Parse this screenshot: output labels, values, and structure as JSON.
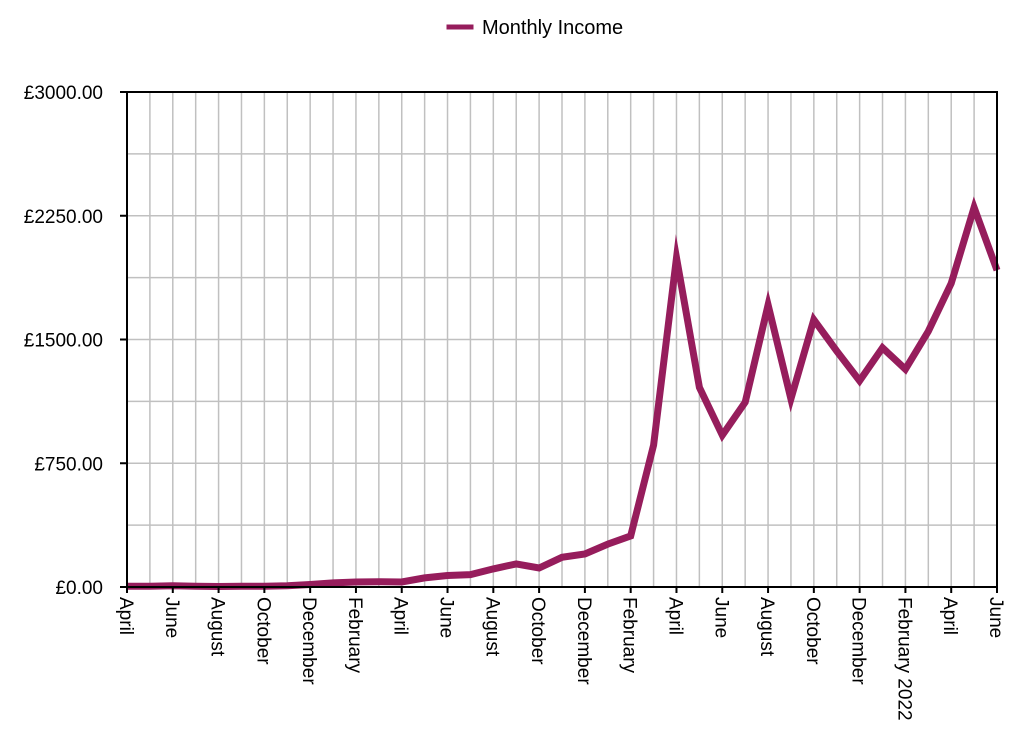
{
  "chart_data": {
    "type": "line",
    "title": "",
    "xlabel": "",
    "ylabel": "",
    "legend": {
      "position": "top-center",
      "entries": [
        {
          "label": "Monthly Income",
          "color": "#961D5C"
        }
      ]
    },
    "grid": true,
    "x_tick_labels": [
      {
        "index": 0,
        "label": "April"
      },
      {
        "index": 2,
        "label": "June"
      },
      {
        "index": 4,
        "label": "August"
      },
      {
        "index": 6,
        "label": "October"
      },
      {
        "index": 8,
        "label": "December"
      },
      {
        "index": 10,
        "label": "February"
      },
      {
        "index": 12,
        "label": "April"
      },
      {
        "index": 14,
        "label": "June"
      },
      {
        "index": 16,
        "label": "August"
      },
      {
        "index": 18,
        "label": "October"
      },
      {
        "index": 20,
        "label": "December"
      },
      {
        "index": 22,
        "label": "February"
      },
      {
        "index": 24,
        "label": "April"
      },
      {
        "index": 26,
        "label": "June"
      },
      {
        "index": 28,
        "label": "August"
      },
      {
        "index": 30,
        "label": "October"
      },
      {
        "index": 32,
        "label": "December"
      },
      {
        "index": 34,
        "label": "February 2022"
      },
      {
        "index": 36,
        "label": "April"
      },
      {
        "index": 38,
        "label": "June"
      }
    ],
    "y_tick_labels": [
      "£0.00",
      "£750.00",
      "£1500.00",
      "£2250.00",
      "£3000.00"
    ],
    "ylim": [
      0,
      3000
    ],
    "y_ticks": [
      0,
      750,
      1500,
      2250,
      3000
    ],
    "series": [
      {
        "name": "Monthly Income",
        "color": "#961D5C",
        "values": [
          5,
          5,
          8,
          5,
          3,
          5,
          5,
          8,
          15,
          25,
          30,
          32,
          30,
          55,
          70,
          75,
          110,
          140,
          115,
          180,
          200,
          260,
          310,
          860,
          1995,
          1210,
          920,
          1120,
          1710,
          1140,
          1620,
          1430,
          1250,
          1450,
          1320,
          1550,
          1840,
          2300,
          1920
        ]
      }
    ]
  }
}
